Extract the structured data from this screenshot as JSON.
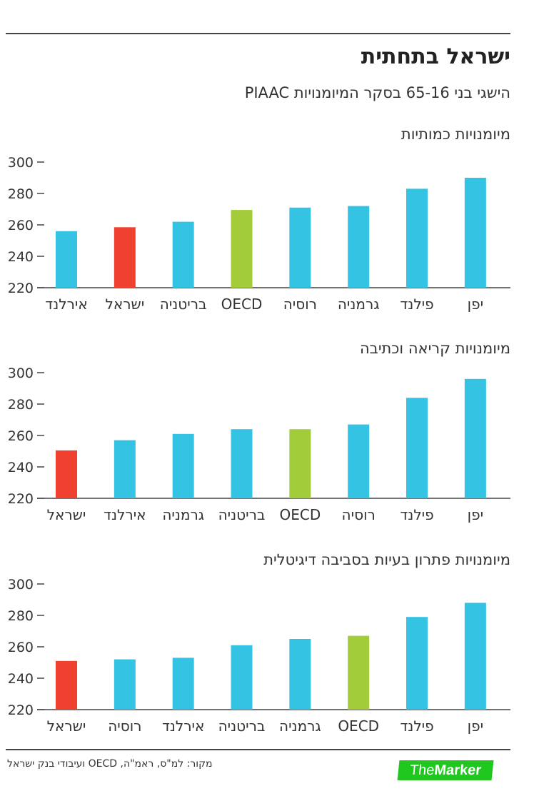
{
  "title": "ישראל בתחתית",
  "subtitle": "הישגי בני 65-16 בסקר המיומנויות PIAAC",
  "source": "מקור: למ\"ס, ראמ\"ה, OECD ועיבודי בנק ישראל",
  "logo": {
    "the": "The",
    "marker": "Marker"
  },
  "colors": {
    "default": "#35c3e3",
    "israel": "#f04130",
    "oecd": "#a3cc3a"
  },
  "chart_data": [
    {
      "type": "bar",
      "title": "מיומנויות כמותיות",
      "ylim": [
        220,
        300
      ],
      "yticks": [
        220,
        240,
        260,
        280,
        300
      ],
      "categories": [
        "אירלנד",
        "ישראל",
        "בריטניה",
        "OECD",
        "רוסיה",
        "גרמניה",
        "פילנד",
        "יפן"
      ],
      "values": [
        256,
        258.5,
        262,
        269.5,
        271,
        272,
        283,
        290
      ],
      "highlight": [
        "default",
        "israel",
        "default",
        "oecd",
        "default",
        "default",
        "default",
        "default"
      ]
    },
    {
      "type": "bar",
      "title": "מיומנויות קריאה וכתיבה",
      "ylim": [
        220,
        300
      ],
      "yticks": [
        220,
        240,
        260,
        280,
        300
      ],
      "categories": [
        "ישראל",
        "אירלנד",
        "גרמניה",
        "בריטניה",
        "OECD",
        "רוסיה",
        "פילנד",
        "יפן"
      ],
      "values": [
        250.5,
        257,
        261,
        264,
        264,
        267,
        284,
        296
      ],
      "highlight": [
        "israel",
        "default",
        "default",
        "default",
        "oecd",
        "default",
        "default",
        "default"
      ]
    },
    {
      "type": "bar",
      "title": "מיומנויות פתרון בעיות בסביבה דיגיטלית",
      "ylim": [
        220,
        300
      ],
      "yticks": [
        220,
        240,
        260,
        280,
        300
      ],
      "categories": [
        "ישראל",
        "רוסיה",
        "אירלנד",
        "בריטניה",
        "גרמניה",
        "OECD",
        "פילנד",
        "יפן"
      ],
      "values": [
        251,
        252,
        253,
        261,
        265,
        267,
        279,
        288
      ],
      "highlight": [
        "israel",
        "default",
        "default",
        "default",
        "default",
        "oecd",
        "default",
        "default"
      ]
    }
  ]
}
